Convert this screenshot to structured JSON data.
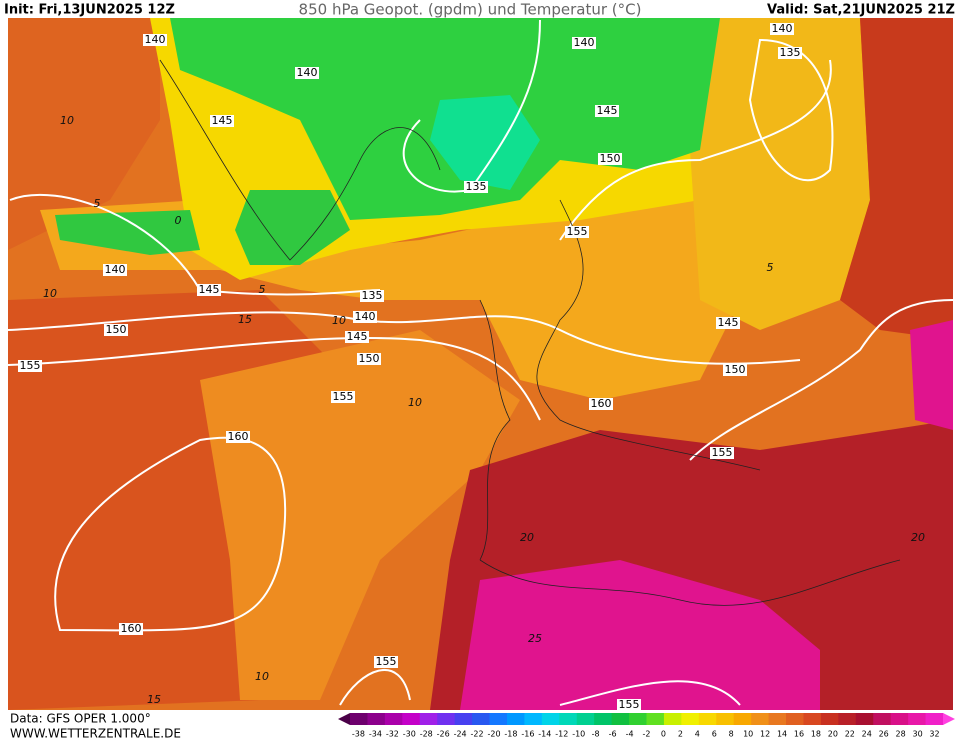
{
  "header": {
    "init": "Init: Fri,13JUN2025 12Z",
    "title": "850 hPa Geopot. (gpdm) und Temperatur (°C)",
    "valid": "Valid: Sat,21JUN2025 21Z"
  },
  "footer": {
    "data": "Data: GFS OPER 1.000°",
    "website": "WWW.WETTERZENTRALE.DE"
  },
  "contours": {
    "geopotential": [
      "140",
      "140",
      "145",
      "140",
      "145",
      "150",
      "135",
      "155",
      "140",
      "135",
      "140",
      "145",
      "135",
      "140",
      "145",
      "150",
      "150",
      "155",
      "155",
      "160",
      "145",
      "150",
      "155",
      "160",
      "160",
      "155",
      "155"
    ],
    "temperature": [
      "10",
      "5",
      "0",
      "5",
      "10",
      "15",
      "10",
      "10",
      "20",
      "25",
      "20",
      "10",
      "15",
      "5"
    ]
  },
  "scale": {
    "labels": [
      "-38",
      "-34",
      "-32",
      "-30",
      "-28",
      "-26",
      "-24",
      "-22",
      "-20",
      "-18",
      "-16",
      "-14",
      "-12",
      "-10",
      "-8",
      "-6",
      "-4",
      "-2",
      "0",
      "2",
      "4",
      "6",
      "8",
      "10",
      "12",
      "14",
      "16",
      "18",
      "20",
      "22",
      "24",
      "26",
      "28",
      "30",
      "32"
    ],
    "colors": [
      "#4a0048",
      "#6e006e",
      "#8c008c",
      "#aa00aa",
      "#c400c8",
      "#a020e8",
      "#7030f0",
      "#4840f0",
      "#2858f0",
      "#1478ff",
      "#0098ff",
      "#00b8ff",
      "#00d4e8",
      "#00d8b8",
      "#00d090",
      "#00c468",
      "#10c040",
      "#30d030",
      "#60e020",
      "#c8f000",
      "#f0f000",
      "#f8d800",
      "#f8c000",
      "#f8a800",
      "#f09018",
      "#e87820",
      "#e06020",
      "#d84820",
      "#c83020",
      "#b82028",
      "#a81030",
      "#c01060",
      "#d81088",
      "#e818a8",
      "#f020c8",
      "#ff40e0"
    ]
  }
}
